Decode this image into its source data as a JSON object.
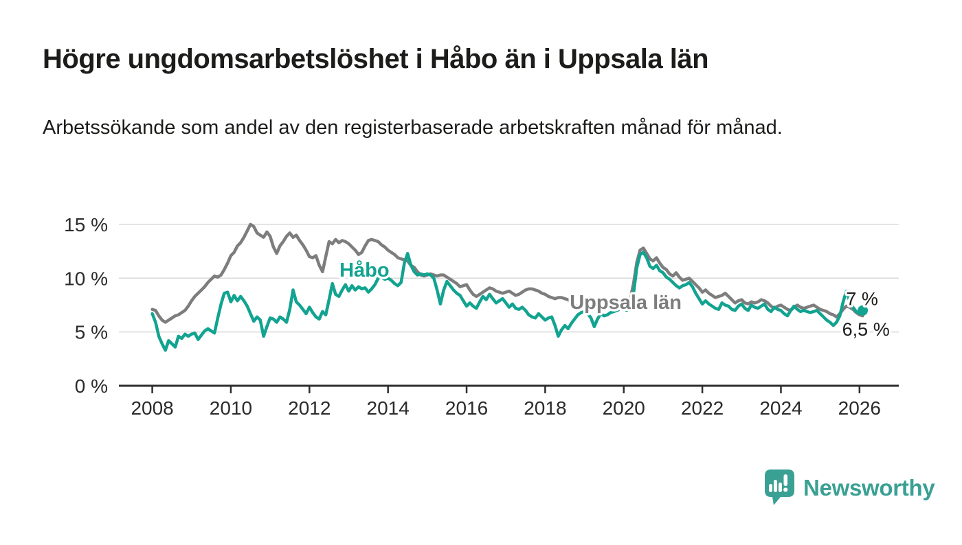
{
  "title": "Högre ungdomsarbetslöshet i Håbo än i Uppsala län",
  "subtitle": "Arbetssökande som andel av den registerbaserade arbetskraften månad för månad.",
  "branding": {
    "logo_text": "Newsworthy",
    "logo_color": "#3aa094"
  },
  "colors": {
    "habo_line": "#12a391",
    "uppsala_line": "#7d7d7d",
    "grid": "#d9d9d9",
    "axis": "#2e2e2e",
    "tick_text": "#2b2b2b",
    "annotation_text": "#1c1c1a"
  },
  "chart_data": {
    "type": "line",
    "title": "Högre ungdomsarbetslöshet i Håbo än i Uppsala län",
    "xlabel": "",
    "ylabel": "",
    "grid": "horizontal",
    "legend_position": "inline-labels",
    "xlim": [
      2007.15,
      2027.0
    ],
    "ylim": [
      0,
      15.76
    ],
    "x_ticks": [
      2008,
      2010,
      2012,
      2014,
      2016,
      2018,
      2020,
      2022,
      2024,
      2026
    ],
    "x_tick_labels": [
      "2008",
      "2010",
      "2012",
      "2014",
      "2016",
      "2018",
      "2020",
      "2022",
      "2024",
      "2026"
    ],
    "y_ticks": [
      0,
      5,
      10,
      15
    ],
    "y_tick_labels": [
      "0 %",
      "5 %",
      "10 %",
      "15 %"
    ],
    "y_grid_values": [
      5,
      10,
      15
    ],
    "x_start": 2008.0,
    "x_step": 0.08333,
    "series": [
      {
        "name": "Uppsala län",
        "color": "#7d7d7d",
        "end_value_label": "6,5 %",
        "values": [
          7.1,
          7.0,
          6.5,
          6.1,
          5.9,
          6.1,
          6.3,
          6.5,
          6.6,
          6.8,
          7.0,
          7.4,
          7.9,
          8.3,
          8.6,
          8.9,
          9.2,
          9.6,
          9.9,
          10.2,
          10.1,
          10.3,
          10.8,
          11.4,
          12.1,
          12.4,
          13.0,
          13.3,
          13.8,
          14.4,
          15.0,
          14.8,
          14.2,
          14.0,
          13.8,
          14.3,
          13.9,
          12.9,
          12.3,
          13.0,
          13.4,
          13.9,
          14.2,
          13.8,
          14.0,
          13.5,
          13.1,
          12.6,
          12.0,
          11.9,
          12.1,
          11.2,
          10.6,
          12.0,
          13.4,
          13.2,
          13.6,
          13.3,
          13.5,
          13.4,
          13.2,
          12.9,
          12.6,
          12.2,
          12.4,
          13.0,
          13.5,
          13.6,
          13.5,
          13.4,
          13.1,
          12.9,
          12.6,
          12.4,
          12.2,
          11.9,
          11.8,
          11.7,
          11.6,
          11.2,
          11.0,
          10.6,
          10.3,
          10.2,
          10.3,
          10.4,
          10.3,
          10.2,
          10.3,
          10.3,
          10.1,
          9.9,
          9.7,
          9.5,
          9.2,
          9.3,
          9.4,
          8.9,
          8.5,
          8.3,
          8.5,
          8.7,
          8.9,
          9.1,
          9.0,
          8.8,
          8.7,
          8.6,
          8.7,
          8.8,
          8.6,
          8.4,
          8.5,
          8.7,
          8.9,
          9.0,
          9.0,
          8.9,
          8.8,
          8.6,
          8.5,
          8.3,
          8.2,
          8.1,
          8.2,
          8.2,
          8.1,
          8.0,
          7.8,
          7.5,
          7.4,
          7.6,
          7.7,
          7.7,
          7.6,
          7.5,
          7.6,
          7.7,
          7.6,
          7.5,
          7.6,
          7.7,
          7.8,
          7.9,
          7.9,
          7.8,
          8.1,
          9.5,
          11.5,
          12.6,
          12.8,
          12.3,
          11.8,
          11.6,
          11.9,
          11.4,
          11.0,
          10.8,
          10.4,
          10.2,
          10.5,
          10.1,
          9.8,
          9.9,
          10.0,
          9.7,
          9.4,
          9.1,
          8.7,
          8.9,
          8.6,
          8.4,
          8.2,
          8.3,
          8.4,
          8.6,
          8.3,
          8.0,
          7.7,
          7.9,
          8.0,
          7.7,
          7.6,
          7.8,
          7.7,
          7.8,
          8.0,
          7.9,
          7.7,
          7.4,
          7.2,
          7.4,
          7.5,
          7.3,
          7.1,
          7.0,
          7.3,
          7.5,
          7.3,
          7.2,
          7.3,
          7.4,
          7.5,
          7.3,
          7.1,
          7.0,
          6.9,
          6.7,
          6.6,
          6.4,
          6.7,
          7.1,
          7.4,
          7.3,
          7.1,
          6.8,
          6.6,
          6.5
        ]
      },
      {
        "name": "Håbo",
        "color": "#12a391",
        "end_value_label": "7 %",
        "end_dot": true,
        "values": [
          6.7,
          5.9,
          4.6,
          3.9,
          3.3,
          4.2,
          3.9,
          3.6,
          4.6,
          4.4,
          4.8,
          4.6,
          4.8,
          4.9,
          4.3,
          4.7,
          5.1,
          5.3,
          5.1,
          4.9,
          6.3,
          7.6,
          8.6,
          8.7,
          7.8,
          8.4,
          7.9,
          8.3,
          7.9,
          7.4,
          6.7,
          6.0,
          6.4,
          6.1,
          4.6,
          5.5,
          6.3,
          6.2,
          5.9,
          6.4,
          6.2,
          5.9,
          7.1,
          8.9,
          7.8,
          7.5,
          7.1,
          6.7,
          7.3,
          6.8,
          6.4,
          6.2,
          6.9,
          6.6,
          8.0,
          9.5,
          8.5,
          8.3,
          8.9,
          9.4,
          8.8,
          9.3,
          8.9,
          9.2,
          9.0,
          9.1,
          8.7,
          9.0,
          9.4,
          10.0,
          10.1,
          9.9,
          10.0,
          9.8,
          9.5,
          9.3,
          9.6,
          11.4,
          12.3,
          11.2,
          10.6,
          10.3,
          10.4,
          10.3,
          10.4,
          10.3,
          10.0,
          8.9,
          7.6,
          8.9,
          9.7,
          9.3,
          8.9,
          8.6,
          8.4,
          7.9,
          7.4,
          7.7,
          7.4,
          7.2,
          7.8,
          8.3,
          8.0,
          8.5,
          8.1,
          7.7,
          7.9,
          8.1,
          7.7,
          7.3,
          7.6,
          7.2,
          7.1,
          7.3,
          7.0,
          6.6,
          6.4,
          6.3,
          6.7,
          6.4,
          6.1,
          6.3,
          6.4,
          5.6,
          4.6,
          5.2,
          5.6,
          5.3,
          5.8,
          6.2,
          6.6,
          6.8,
          6.9,
          6.7,
          6.3,
          5.5,
          6.2,
          6.7,
          6.5,
          6.6,
          6.8,
          6.9,
          7.0,
          7.2,
          7.1,
          7.0,
          7.4,
          8.6,
          11.0,
          12.2,
          12.4,
          11.9,
          11.1,
          10.9,
          11.2,
          10.7,
          10.5,
          10.1,
          9.9,
          9.6,
          9.3,
          9.1,
          9.3,
          9.4,
          9.6,
          9.2,
          8.6,
          8.1,
          7.6,
          7.9,
          7.6,
          7.4,
          7.2,
          7.1,
          7.7,
          7.5,
          7.4,
          7.1,
          7.0,
          7.4,
          7.6,
          7.2,
          7.0,
          7.5,
          7.3,
          7.2,
          7.4,
          7.6,
          7.1,
          6.9,
          7.3,
          7.1,
          7.0,
          6.7,
          6.5,
          7.0,
          7.4,
          7.1,
          6.9,
          7.0,
          6.9,
          6.8,
          6.9,
          7.0,
          6.7,
          6.4,
          6.1,
          5.9,
          5.6,
          5.9,
          6.5,
          7.8,
          8.8,
          7.9,
          7.3,
          6.9,
          6.7,
          7.0
        ]
      }
    ],
    "annotations": [
      {
        "id": "series-label-habo",
        "text": "Håbo",
        "x": 2013.4,
        "y": 10.15,
        "color": "#12a391",
        "bold": true,
        "size": 29,
        "anchor": "middle"
      },
      {
        "id": "series-label-uppsala",
        "text": "Uppsala län",
        "x": 2020.05,
        "y": 7.15,
        "color": "#7d7d7d",
        "bold": true,
        "size": 29,
        "anchor": "middle"
      },
      {
        "id": "end-value-habo",
        "text": "7 %",
        "x": 2025.66,
        "y": 7.5,
        "color": "#1c1c1a",
        "bold": false,
        "size": 27,
        "anchor": "start"
      },
      {
        "id": "end-value-uppsala",
        "text": "6,5 %",
        "x": 2025.56,
        "y": 4.66,
        "color": "#1c1c1a",
        "bold": false,
        "size": 27,
        "anchor": "start"
      }
    ]
  }
}
